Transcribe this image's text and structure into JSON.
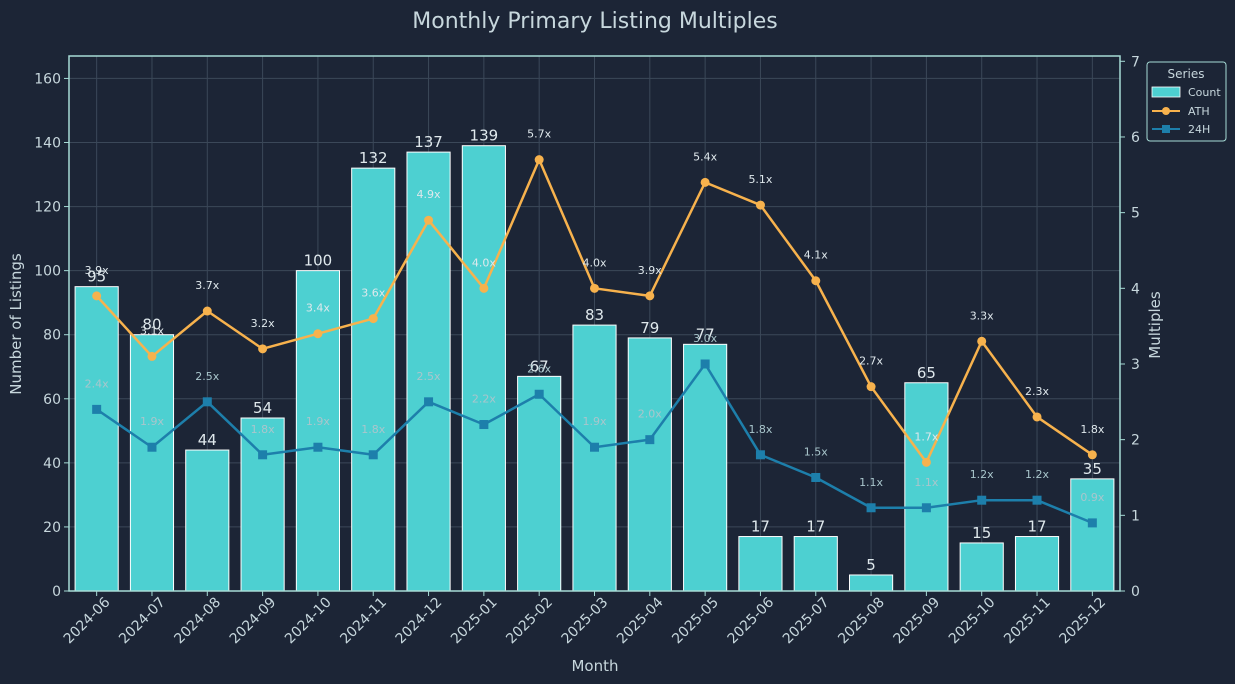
{
  "chart_data": {
    "type": "bar+line",
    "title": "Monthly Primary Listing Multiples",
    "xlabel": "Month",
    "ylabel": "Number of Listings",
    "y2label": "Multiples",
    "ylim": [
      0,
      167
    ],
    "y2lim": [
      0,
      7.07
    ],
    "yticks": [
      0,
      20,
      40,
      60,
      80,
      100,
      120,
      140,
      160
    ],
    "y2ticks": [
      0,
      1,
      2,
      3,
      4,
      5,
      6,
      7
    ],
    "grid": true,
    "legend": {
      "title": "Series",
      "position": "top-right-outside"
    },
    "categories": [
      "2024-06",
      "2024-07",
      "2024-08",
      "2024-09",
      "2024-10",
      "2024-11",
      "2024-12",
      "2025-01",
      "2025-02",
      "2025-03",
      "2025-04",
      "2025-05",
      "2025-06",
      "2025-07",
      "2025-08",
      "2025-09",
      "2025-10",
      "2025-11",
      "2025-12"
    ],
    "series": [
      {
        "name": "Count",
        "type": "bar",
        "axis": "left",
        "color": "#4dd0d1",
        "values": [
          95,
          80,
          44,
          54,
          100,
          132,
          137,
          139,
          67,
          83,
          79,
          77,
          17,
          17,
          5,
          65,
          15,
          17,
          35
        ]
      },
      {
        "name": "ATH",
        "type": "line",
        "axis": "right",
        "marker": "circle",
        "color": "#f7b24d",
        "values": [
          3.9,
          3.1,
          3.7,
          3.2,
          3.4,
          3.6,
          4.9,
          4.0,
          5.7,
          4.0,
          3.9,
          5.4,
          5.1,
          4.1,
          2.7,
          1.7,
          3.3,
          2.3,
          1.8
        ],
        "labels": [
          "3.9x",
          "3.1x",
          "3.7x",
          "3.2x",
          "3.4x",
          "3.6x",
          "4.9x",
          "4.0x",
          "5.7x",
          "4.0x",
          "3.9x",
          "5.4x",
          "5.1x",
          "4.1x",
          "2.7x",
          "1.7x",
          "3.3x",
          "2.3x",
          "1.8x"
        ]
      },
      {
        "name": "24H",
        "type": "line",
        "axis": "right",
        "marker": "square",
        "color": "#1d7fab",
        "values": [
          2.4,
          1.9,
          2.5,
          1.8,
          1.9,
          1.8,
          2.5,
          2.2,
          2.6,
          1.9,
          2.0,
          3.0,
          1.8,
          1.5,
          1.1,
          1.1,
          1.2,
          1.2,
          0.9
        ],
        "labels": [
          "2.4x",
          "1.9x",
          "2.5x",
          "1.8x",
          "1.9x",
          "1.8x",
          "2.5x",
          "2.2x",
          "2.6x",
          "1.9x",
          "2.0x",
          "3.0x",
          "1.8x",
          "1.5x",
          "1.1x",
          "1.1x",
          "1.2x",
          "1.2x",
          "0.9x"
        ]
      }
    ],
    "colors": {
      "background": "#1c2536",
      "frame": "#a6dcd6",
      "grid": "#3b4859",
      "text": "#c7d7dd",
      "ath_label": "#dfe8ec",
      "h24_label": "#a9c6cc"
    }
  }
}
